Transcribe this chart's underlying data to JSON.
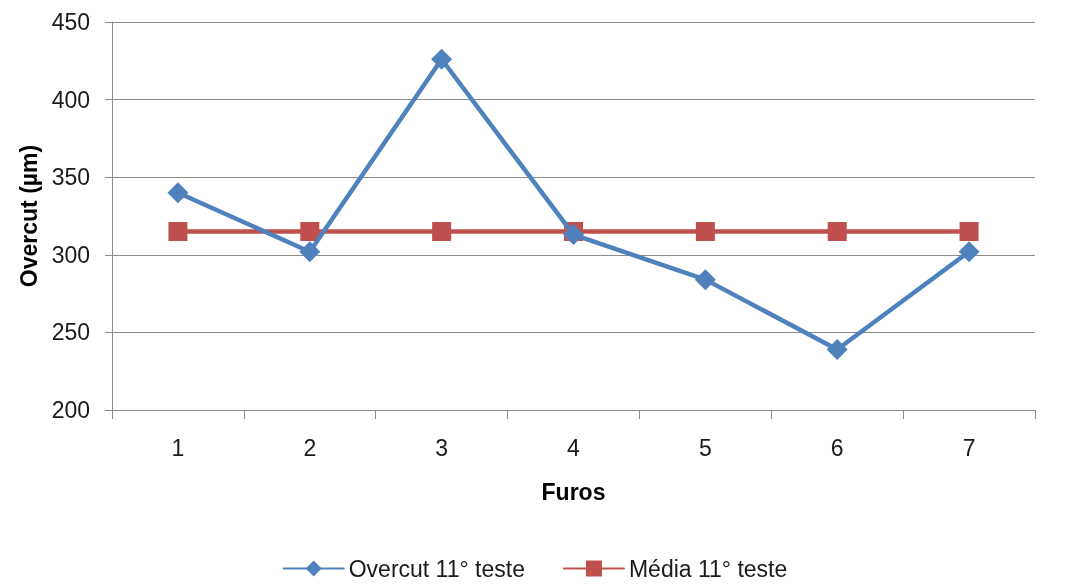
{
  "chart_data": {
    "type": "line",
    "xlabel": "Furos",
    "ylabel": "Overcut (µm)",
    "categories": [
      "1",
      "2",
      "3",
      "4",
      "5",
      "6",
      "7"
    ],
    "series": [
      {
        "name": "Overcut 11° teste",
        "color": "#4f81bd",
        "marker": "diamond",
        "values": [
          340,
          302,
          426,
          313,
          284,
          239,
          302
        ]
      },
      {
        "name": "Média 11° teste",
        "color": "#c0504d",
        "marker": "square",
        "values": [
          315,
          315,
          315,
          315,
          315,
          315,
          315
        ]
      }
    ],
    "ylim": [
      200,
      450
    ],
    "yticks": [
      200,
      250,
      300,
      350,
      400,
      450
    ],
    "grid": "y",
    "legend": "bottom"
  }
}
